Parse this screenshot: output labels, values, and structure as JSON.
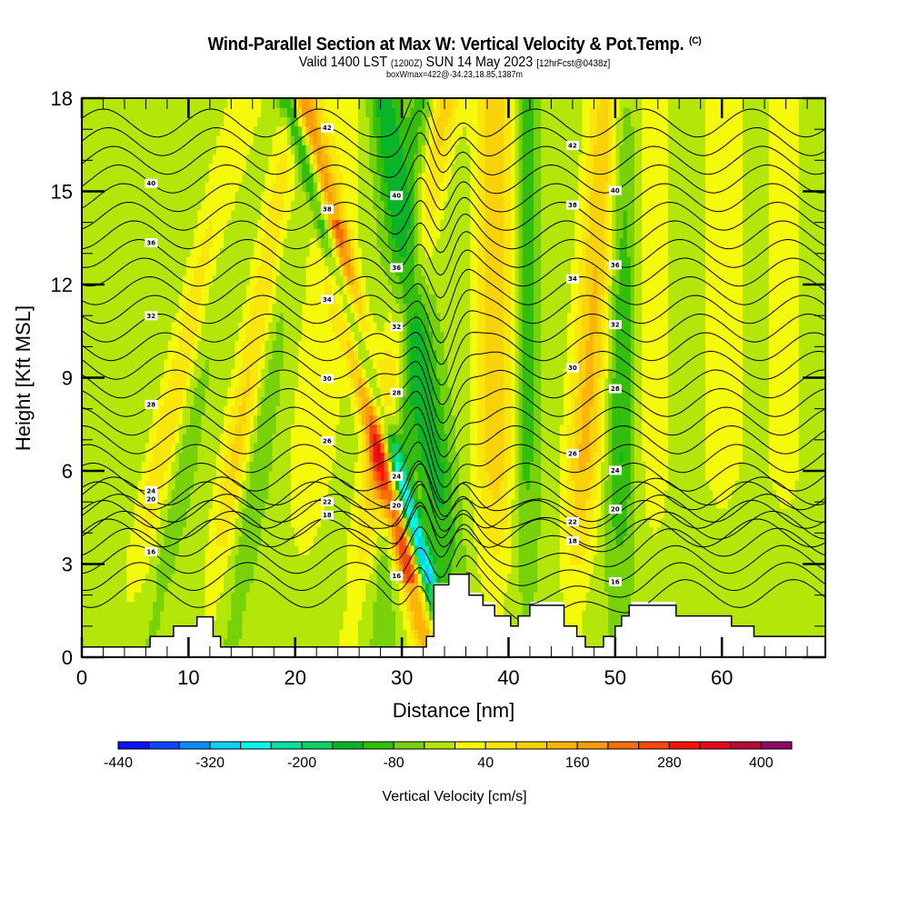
{
  "header": {
    "title": "Wind-Parallel Section at Max W: Vertical Velocity & Pot.Temp.",
    "title_mark": "(C)",
    "valid_prefix": "Valid 1400 LST",
    "valid_utc": "(1200Z)",
    "valid_date": "SUN 14 May 2023",
    "forecast": "[12hrFcst@0438z]",
    "box_info": "boxWmax=422@-34.23,18.85,1387m"
  },
  "chart_data": {
    "type": "heatmap",
    "title": "Wind-Parallel Section at Max W: Vertical Velocity & Pot.Temp.",
    "xlabel": "Distance [nm]",
    "ylabel": "Height [Kft MSL]",
    "xlim": [
      0,
      69.7
    ],
    "ylim": [
      0,
      18
    ],
    "x_ticks": [
      "0",
      "10",
      "20",
      "30",
      "40",
      "50",
      "60"
    ],
    "x_tick_values": [
      0,
      10,
      20,
      30,
      40,
      50,
      60
    ],
    "y_ticks": [
      "0",
      "3",
      "6",
      "9",
      "12",
      "15",
      "18"
    ],
    "y_tick_values": [
      0,
      3,
      6,
      9,
      12,
      15,
      18
    ],
    "colorbar": {
      "label": "Vertical Velocity [cm/s]",
      "min": -440,
      "max": 440,
      "step": 40,
      "tick_labels": [
        "-440",
        "-320",
        "-200",
        "-80",
        "40",
        "160",
        "280",
        "400"
      ],
      "tick_values": [
        -440,
        -320,
        -200,
        -80,
        40,
        160,
        280,
        400
      ],
      "colors": [
        "#0a14f5",
        "#0a46fa",
        "#0a8cfa",
        "#0ad2fa",
        "#0af5e6",
        "#0ae1a0",
        "#0ad264",
        "#0ab428",
        "#32be0a",
        "#78d20a",
        "#b4e60a",
        "#f5fa0a",
        "#fae60a",
        "#fad20a",
        "#fab40a",
        "#fa9b0a",
        "#fa6e0a",
        "#fa460a",
        "#f5140a",
        "#e10a1e",
        "#b90a3c",
        "#8c0a64"
      ]
    },
    "velocity_bands": [
      {
        "x_base": 3.5,
        "tilt": 0.13,
        "width": 1.6,
        "peak": 120
      },
      {
        "x_base": 6.0,
        "tilt": 0.1,
        "width": 1.3,
        "peak": -60
      },
      {
        "x_base": 11.5,
        "tilt": 0.1,
        "width": 1.6,
        "peak": 150
      },
      {
        "x_base": 13.5,
        "tilt": 0.08,
        "width": 1.4,
        "peak": -90
      },
      {
        "x_base": 20.0,
        "tilt": 0.05,
        "width": 2.5,
        "peak": 60
      },
      {
        "x_base": 24.8,
        "tilt": 0.1,
        "width": 1.6,
        "peak": 160
      },
      {
        "x_base": 27.8,
        "tilt": 0.05,
        "width": 1.4,
        "peak": -110
      },
      {
        "x_base": 32.5,
        "tilt": -0.13,
        "width": 1.2,
        "peak": 330
      },
      {
        "x_base": 34.6,
        "tilt": -0.17,
        "width": 0.9,
        "peak": -330
      },
      {
        "x_base": 35.5,
        "tilt": -0.08,
        "width": 1.6,
        "peak": -120
      },
      {
        "x_base": 38.8,
        "tilt": 0.0,
        "width": 2.0,
        "peak": 140
      },
      {
        "x_base": 41.5,
        "tilt": 0.0,
        "width": 1.2,
        "peak": -80
      },
      {
        "x_base": 45.8,
        "tilt": 0.04,
        "width": 1.8,
        "peak": 160
      },
      {
        "x_base": 50.5,
        "tilt": 0.0,
        "width": 1.5,
        "peak": -100
      },
      {
        "x_base": 53.5,
        "tilt": 0.0,
        "width": 2.0,
        "peak": 50
      },
      {
        "x_base": 60.0,
        "tilt": 0.0,
        "width": 3.0,
        "peak": 40
      },
      {
        "x_base": 66.0,
        "tilt": 0.0,
        "width": 2.5,
        "peak": 40
      }
    ],
    "background_velocity": -30,
    "terrain_kft": {
      "x": [
        0,
        6.4,
        6.4,
        8.6,
        8.6,
        10.8,
        10.8,
        12.3,
        12.3,
        13.0,
        13.0,
        32.3,
        32.3,
        33.0,
        33.0,
        34.4,
        34.4,
        36.3,
        36.3,
        37.6,
        37.6,
        38.7,
        38.7,
        40.2,
        40.2,
        40.9,
        40.9,
        42.0,
        42.0,
        45.2,
        45.2,
        46.4,
        46.4,
        47.2,
        47.2,
        48.9,
        48.9,
        50.0,
        50.0,
        50.6,
        50.6,
        51.3,
        51.3,
        55.7,
        55.7,
        60.9,
        60.9,
        63.0,
        63.0,
        66.9,
        66.9,
        69.7
      ],
      "height": [
        0.33,
        0.33,
        0.67,
        0.67,
        1.0,
        1.0,
        1.3,
        1.3,
        0.67,
        0.67,
        0.33,
        0.33,
        0.67,
        0.67,
        2.33,
        2.33,
        2.67,
        2.67,
        2.0,
        2.0,
        1.67,
        1.67,
        1.33,
        1.33,
        1.0,
        1.0,
        1.33,
        1.33,
        1.67,
        1.67,
        1.0,
        1.0,
        0.67,
        0.67,
        0.33,
        0.33,
        0.67,
        0.67,
        1.0,
        1.0,
        1.33,
        1.33,
        1.67,
        1.67,
        1.33,
        1.33,
        1.0,
        1.0,
        0.67,
        0.67,
        0.67,
        0.67
      ]
    },
    "pot_temp_contours": {
      "units": "C",
      "levels_min": 14,
      "levels_max": 43,
      "interval": 1,
      "labeled_levels": [
        16,
        18,
        20,
        22,
        24,
        26,
        28,
        30,
        32,
        34,
        36,
        38,
        40,
        42
      ],
      "label_text": [
        "16",
        "18",
        "20",
        "22",
        "24",
        "26",
        "28",
        "30",
        "32",
        "34",
        "36",
        "38",
        "40",
        "42"
      ]
    }
  }
}
